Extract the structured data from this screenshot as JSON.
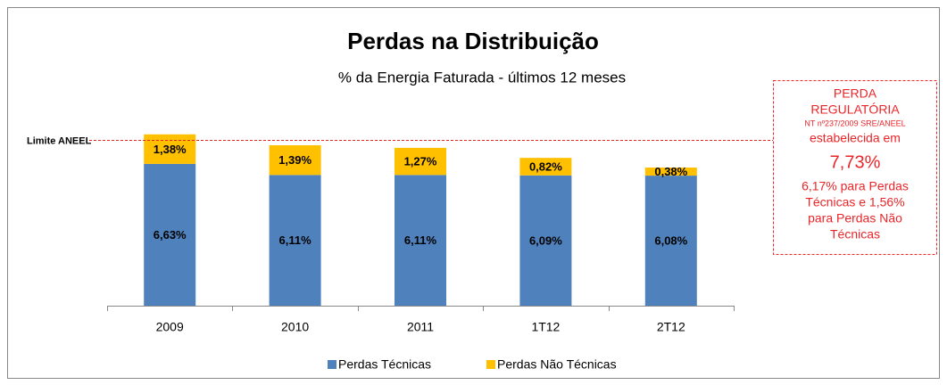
{
  "chart_data": {
    "type": "stacked_bar",
    "title": "Perdas na Distribuição",
    "subtitle": "% da Energia Faturada - últimos 12 meses",
    "categories": [
      "2009",
      "2010",
      "2011",
      "1T12",
      "2T12"
    ],
    "series": [
      {
        "name": "Perdas Técnicas",
        "color": "#4f81bd",
        "values": [
          6.63,
          6.11,
          6.11,
          6.09,
          6.08
        ],
        "value_labels": [
          "6,63%",
          "6,11%",
          "6,11%",
          "6,09%",
          "6,08%"
        ]
      },
      {
        "name": "Perdas Não Técnicas",
        "color": "#ffc000",
        "values": [
          1.38,
          1.39,
          1.27,
          0.82,
          0.38
        ],
        "value_labels": [
          "1,38%",
          "1,39%",
          "1,27%",
          "0,82%",
          "0,38%"
        ]
      }
    ],
    "ylim": [
      0,
      8.5
    ],
    "limit": {
      "name": "Limite ANEEL",
      "value": 7.73,
      "color": "#e8262a"
    },
    "annotation": {
      "line1": "PERDA",
      "line2": "REGULATÓRIA",
      "line3": "NT nº237/2009  SRE/ANEEL",
      "line4": "estabelecida em",
      "value": {
        "value": 7.73,
        "label": "7,73%"
      },
      "detail": [
        "6,17% para Perdas",
        "Técnicas e 1,56%",
        "para Perdas Não",
        "Técnicas"
      ]
    },
    "legend": "bottom"
  }
}
